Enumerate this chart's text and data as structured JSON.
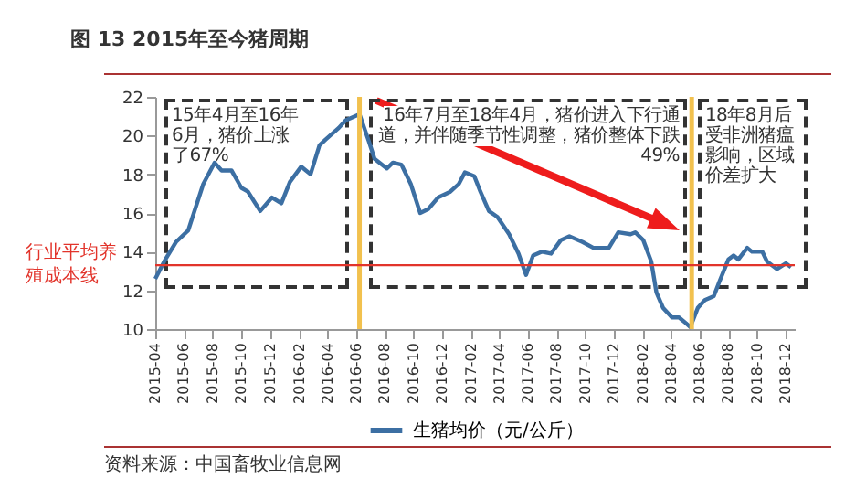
{
  "chart_data": {
    "type": "line",
    "title": "图 13  2015年至今猪周期",
    "x": [
      "2015-04-01",
      "2015-04-20",
      "2015-05-15",
      "2015-06-10",
      "2015-07-12",
      "2015-08-05",
      "2015-08-20",
      "2015-09-10",
      "2015-10-01",
      "2015-10-15",
      "2015-11-10",
      "2015-12-05",
      "2015-12-25",
      "2016-01-12",
      "2016-02-05",
      "2016-02-25",
      "2016-03-15",
      "2016-03-28",
      "2016-04-25",
      "2016-05-10",
      "2016-06-08",
      "2016-06-28",
      "2016-07-10",
      "2016-08-05",
      "2016-08-18",
      "2016-09-05",
      "2016-09-25",
      "2016-10-15",
      "2016-11-01",
      "2016-11-22",
      "2016-12-18",
      "2017-01-05",
      "2017-01-18",
      "2017-02-07",
      "2017-02-20",
      "2017-03-10",
      "2017-03-28",
      "2017-04-22",
      "2017-05-12",
      "2017-05-28",
      "2017-06-12",
      "2017-07-01",
      "2017-07-20",
      "2017-08-10",
      "2017-08-28",
      "2017-09-25",
      "2017-10-18",
      "2017-11-20",
      "2017-12-10",
      "2018-01-05",
      "2018-01-15",
      "2018-02-01",
      "2018-02-18",
      "2018-03-01",
      "2018-03-15",
      "2018-04-03",
      "2018-04-18",
      "2018-05-03",
      "2018-05-12",
      "2018-05-28",
      "2018-06-12",
      "2018-07-01",
      "2018-07-12",
      "2018-08-01",
      "2018-08-12",
      "2018-08-22",
      "2018-09-10",
      "2018-09-20",
      "2018-10-12",
      "2018-10-22",
      "2018-11-12",
      "2018-12-01",
      "2018-12-12"
    ],
    "series": [
      {
        "name": "生猪均价（元/公斤）",
        "color": "#3c6fa3",
        "values": [
          12.6,
          13.5,
          14.5,
          15.1,
          17.5,
          18.6,
          18.2,
          18.2,
          17.3,
          17.1,
          16.1,
          16.8,
          16.5,
          17.6,
          18.4,
          18.0,
          19.5,
          19.8,
          20.4,
          20.8,
          21.1,
          19.7,
          18.8,
          18.3,
          18.6,
          18.5,
          17.5,
          16.0,
          16.2,
          16.8,
          17.1,
          17.5,
          18.1,
          17.9,
          17.1,
          16.1,
          15.8,
          14.9,
          13.9,
          12.8,
          13.8,
          14.0,
          13.9,
          14.6,
          14.8,
          14.5,
          14.2,
          14.2,
          15.0,
          14.9,
          15.0,
          14.6,
          13.5,
          11.9,
          11.1,
          10.6,
          10.6,
          10.3,
          10.1,
          11.1,
          11.5,
          11.7,
          12.4,
          13.6,
          13.8,
          13.6,
          14.2,
          14.0,
          14.0,
          13.5,
          13.1,
          13.4,
          13.2
        ]
      }
    ],
    "xlim": [
      "2015-04-01",
      "2018-12-20"
    ],
    "xticks": [
      "2015-04",
      "2015-06",
      "2015-08",
      "2015-10",
      "2015-12",
      "2016-02",
      "2016-04",
      "2016-06",
      "2016-08",
      "2016-10",
      "2016-12",
      "2017-02",
      "2017-04",
      "2017-06",
      "2017-08",
      "2017-10",
      "2017-12",
      "2018-02",
      "2018-04",
      "2018-06",
      "2018-08",
      "2018-10",
      "2018-12"
    ],
    "ylim": [
      10,
      22
    ],
    "yticks": [
      10,
      12,
      14,
      16,
      18,
      20,
      22
    ],
    "ref_lines": [
      {
        "axis": "y",
        "value": 13.3,
        "label": "行业平均养殖成本线",
        "color": "#e2342b"
      },
      {
        "axis": "x",
        "value": "2016-06-08",
        "color": "#f2c14e"
      },
      {
        "axis": "x",
        "value": "2018-05-15",
        "color": "#f2c14e"
      }
    ],
    "annotations": [
      "15年4月至16年6月，猪价上涨了67%",
      "16年7月至18年4月，猪价进入下行通道，并伴随季节性调整，猪价整体下跌49%",
      "18年8月后受非洲猪瘟影响，区域价差扩大",
      "资料来源：中国畜牧业信息网"
    ],
    "legend": "bottom",
    "grid": false
  }
}
